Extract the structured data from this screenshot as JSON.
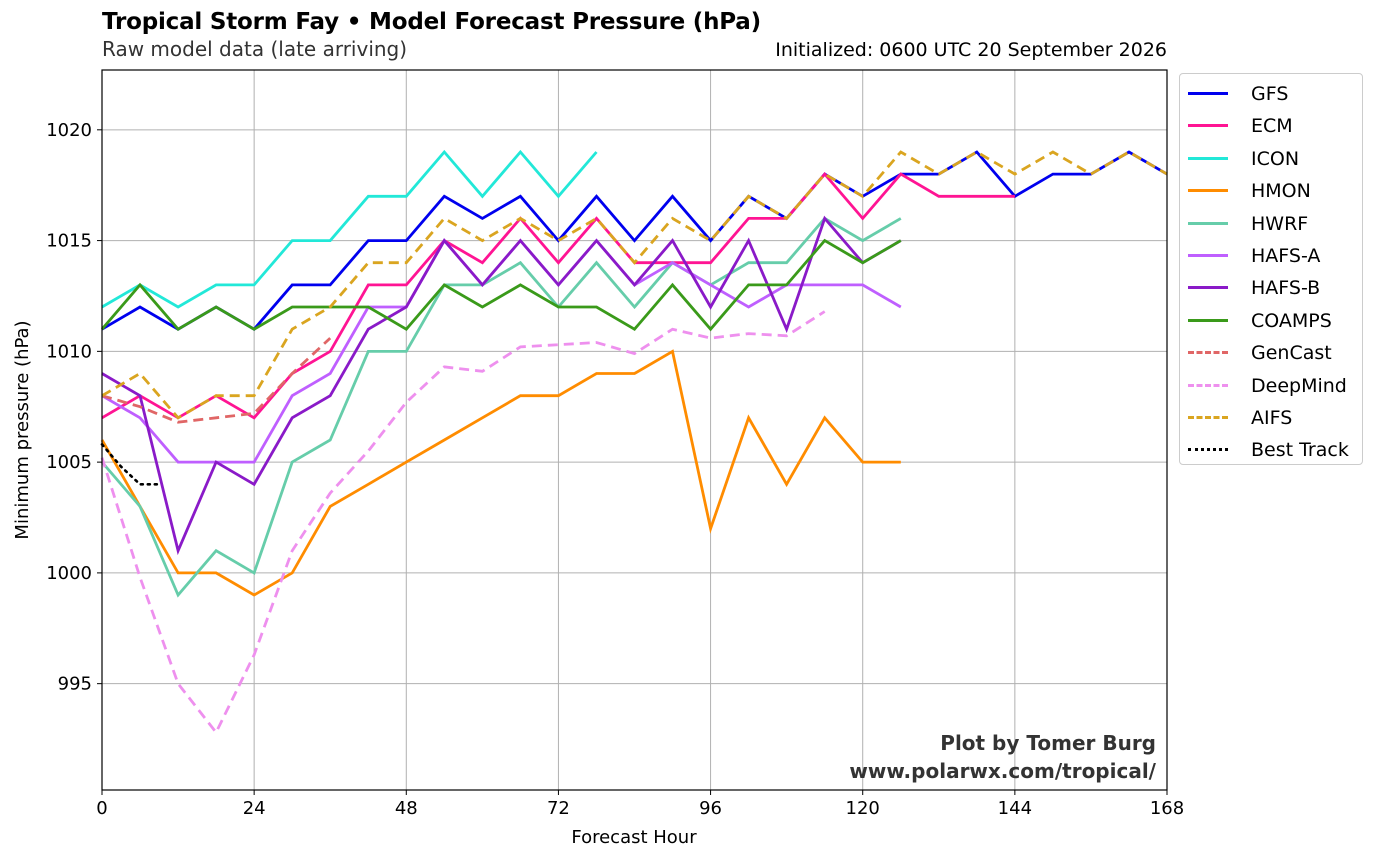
{
  "chart_data": {
    "type": "line",
    "title": "Tropical Storm Fay • Model Forecast Pressure (hPa)",
    "subtitle": "Raw model data (late arriving)",
    "initialized": "Initialized: 0600 UTC 20 September 2026",
    "xlabel": "Forecast Hour",
    "ylabel": "Minimum pressure (hPa)",
    "xlim": [
      0,
      168
    ],
    "ylim": [
      990.2,
      1022.7
    ],
    "xticks": [
      0,
      24,
      48,
      72,
      96,
      120,
      144,
      168
    ],
    "yticks": [
      995,
      1000,
      1005,
      1010,
      1015,
      1020
    ],
    "grid": true,
    "legend_position": "outside-right",
    "credit_line1": "Plot by Tomer Burg",
    "credit_line2": "www.polarwx.com/tropical/",
    "series": [
      {
        "name": "GFS",
        "color": "#0000ee",
        "dash": "solid",
        "x": [
          0,
          6,
          12,
          18,
          24,
          30,
          36,
          42,
          48,
          54,
          60,
          66,
          72,
          78,
          84,
          90,
          96,
          102,
          108,
          114,
          120,
          126,
          132,
          138,
          144,
          150,
          156,
          162,
          168
        ],
        "y": [
          1011,
          1012,
          1011,
          1012,
          1011,
          1013,
          1013,
          1015,
          1015,
          1017,
          1016,
          1017,
          1015,
          1017,
          1015,
          1017,
          1015,
          1017,
          1016,
          1018,
          1017,
          1018,
          1018,
          1019,
          1017,
          1018,
          1018,
          1019,
          1018
        ]
      },
      {
        "name": "ECM",
        "color": "#ff1493",
        "dash": "solid",
        "x": [
          0,
          6,
          12,
          18,
          24,
          30,
          36,
          42,
          48,
          54,
          60,
          66,
          72,
          78,
          84,
          90,
          96,
          102,
          108,
          114,
          120,
          126,
          132,
          138,
          144
        ],
        "y": [
          1007,
          1008,
          1007,
          1008,
          1007,
          1009,
          1010,
          1013,
          1013,
          1015,
          1014,
          1016,
          1014,
          1016,
          1014,
          1014,
          1014,
          1016,
          1016,
          1018,
          1016,
          1018,
          1017,
          1017,
          1017
        ]
      },
      {
        "name": "ICON",
        "color": "#22e8d8",
        "dash": "solid",
        "x": [
          0,
          6,
          12,
          18,
          24,
          30,
          36,
          42,
          48,
          54,
          60,
          66,
          72,
          78
        ],
        "y": [
          1012,
          1013,
          1012,
          1013,
          1013,
          1015,
          1015,
          1017,
          1017,
          1019,
          1017,
          1019,
          1017,
          1019
        ]
      },
      {
        "name": "HMON",
        "color": "#ff8c00",
        "dash": "solid",
        "x": [
          0,
          6,
          12,
          18,
          24,
          30,
          36,
          42,
          48,
          54,
          60,
          66,
          72,
          78,
          84,
          90,
          96,
          102,
          108,
          114,
          120,
          126
        ],
        "y": [
          1006,
          1003,
          1000,
          1000,
          999,
          1000,
          1003,
          1004,
          1005,
          1006,
          1007,
          1008,
          1008,
          1009,
          1009,
          1010,
          1002,
          1007,
          1004,
          1007,
          1005,
          1005
        ]
      },
      {
        "name": "HWRF",
        "color": "#66cdaa",
        "dash": "solid",
        "x": [
          0,
          6,
          12,
          18,
          24,
          30,
          36,
          42,
          48,
          54,
          60,
          66,
          72,
          78,
          84,
          90,
          96,
          102,
          108,
          114,
          120,
          126
        ],
        "y": [
          1005,
          1003,
          999,
          1001,
          1000,
          1005,
          1006,
          1010,
          1010,
          1013,
          1013,
          1014,
          1012,
          1014,
          1012,
          1014,
          1013,
          1014,
          1014,
          1016,
          1015,
          1016
        ]
      },
      {
        "name": "HAFS-A",
        "color": "#bf5fff",
        "dash": "solid",
        "x": [
          0,
          6,
          12,
          18,
          24,
          30,
          36,
          42,
          48,
          54,
          60,
          66,
          72,
          78,
          84,
          90,
          96,
          102,
          108,
          114,
          120,
          126
        ],
        "y": [
          1008,
          1007,
          1005,
          1005,
          1005,
          1008,
          1009,
          1012,
          1012,
          1015,
          1013,
          1015,
          1013,
          1015,
          1013,
          1014,
          1013,
          1012,
          1013,
          1013,
          1013,
          1012
        ]
      },
      {
        "name": "HAFS-B",
        "color": "#8a1ac8",
        "dash": "solid",
        "x": [
          0,
          6,
          12,
          18,
          24,
          30,
          36,
          42,
          48,
          54,
          60,
          66,
          72,
          78,
          84,
          90,
          96,
          102,
          108,
          114,
          120,
          126
        ],
        "y": [
          1009,
          1008,
          1001,
          1005,
          1004,
          1007,
          1008,
          1011,
          1012,
          1015,
          1013,
          1015,
          1013,
          1015,
          1013,
          1015,
          1012,
          1015,
          1011,
          1016,
          1014,
          1015
        ]
      },
      {
        "name": "COAMPS",
        "color": "#3a9a1a",
        "dash": "solid",
        "x": [
          0,
          6,
          12,
          18,
          24,
          30,
          36,
          42,
          48,
          54,
          60,
          66,
          72,
          78,
          84,
          90,
          96,
          102,
          108,
          114,
          120,
          126
        ],
        "y": [
          1011,
          1013,
          1011,
          1012,
          1011,
          1012,
          1012,
          1012,
          1011,
          1013,
          1012,
          1013,
          1012,
          1012,
          1011,
          1013,
          1011,
          1013,
          1013,
          1015,
          1014,
          1015
        ]
      },
      {
        "name": "GenCast",
        "color": "#e06666",
        "dash": "dashed",
        "x": [
          0,
          6,
          12,
          18,
          24,
          30,
          36
        ],
        "y": [
          1008,
          1007.5,
          1006.8,
          1007,
          1007.2,
          1009,
          1010.6
        ]
      },
      {
        "name": "DeepMind",
        "color": "#ee90ee",
        "dash": "dashed",
        "x": [
          0,
          6,
          12,
          18,
          24,
          30,
          36,
          42,
          48,
          54,
          60,
          66,
          72,
          78,
          84,
          90,
          96,
          102,
          108,
          114
        ],
        "y": [
          1005.2,
          999.8,
          995,
          992.8,
          996.3,
          1001,
          1003.6,
          1005.5,
          1007.7,
          1009.3,
          1009.1,
          1010.2,
          1010.3,
          1010.4,
          1009.9,
          1011,
          1010.6,
          1010.8,
          1010.7,
          1011.8
        ]
      },
      {
        "name": "AIFS",
        "color": "#daa520",
        "dash": "dashed",
        "x": [
          0,
          6,
          12,
          18,
          24,
          30,
          36,
          42,
          48,
          54,
          60,
          66,
          72,
          78,
          84,
          90,
          96,
          102,
          108,
          114,
          120,
          126,
          132,
          138,
          144,
          150,
          156,
          162,
          168
        ],
        "y": [
          1008,
          1009,
          1007,
          1008,
          1008,
          1011,
          1012,
          1014,
          1014,
          1016,
          1015,
          1016,
          1015,
          1016,
          1014,
          1016,
          1015,
          1017,
          1016,
          1018,
          1017,
          1019,
          1018,
          1019,
          1018,
          1019,
          1018,
          1019,
          1018
        ]
      },
      {
        "name": "Best Track",
        "color": "#000000",
        "dash": "dotted",
        "x": [
          0,
          3,
          6,
          9
        ],
        "y": [
          1005.8,
          1004.8,
          1004,
          1004
        ]
      }
    ]
  }
}
